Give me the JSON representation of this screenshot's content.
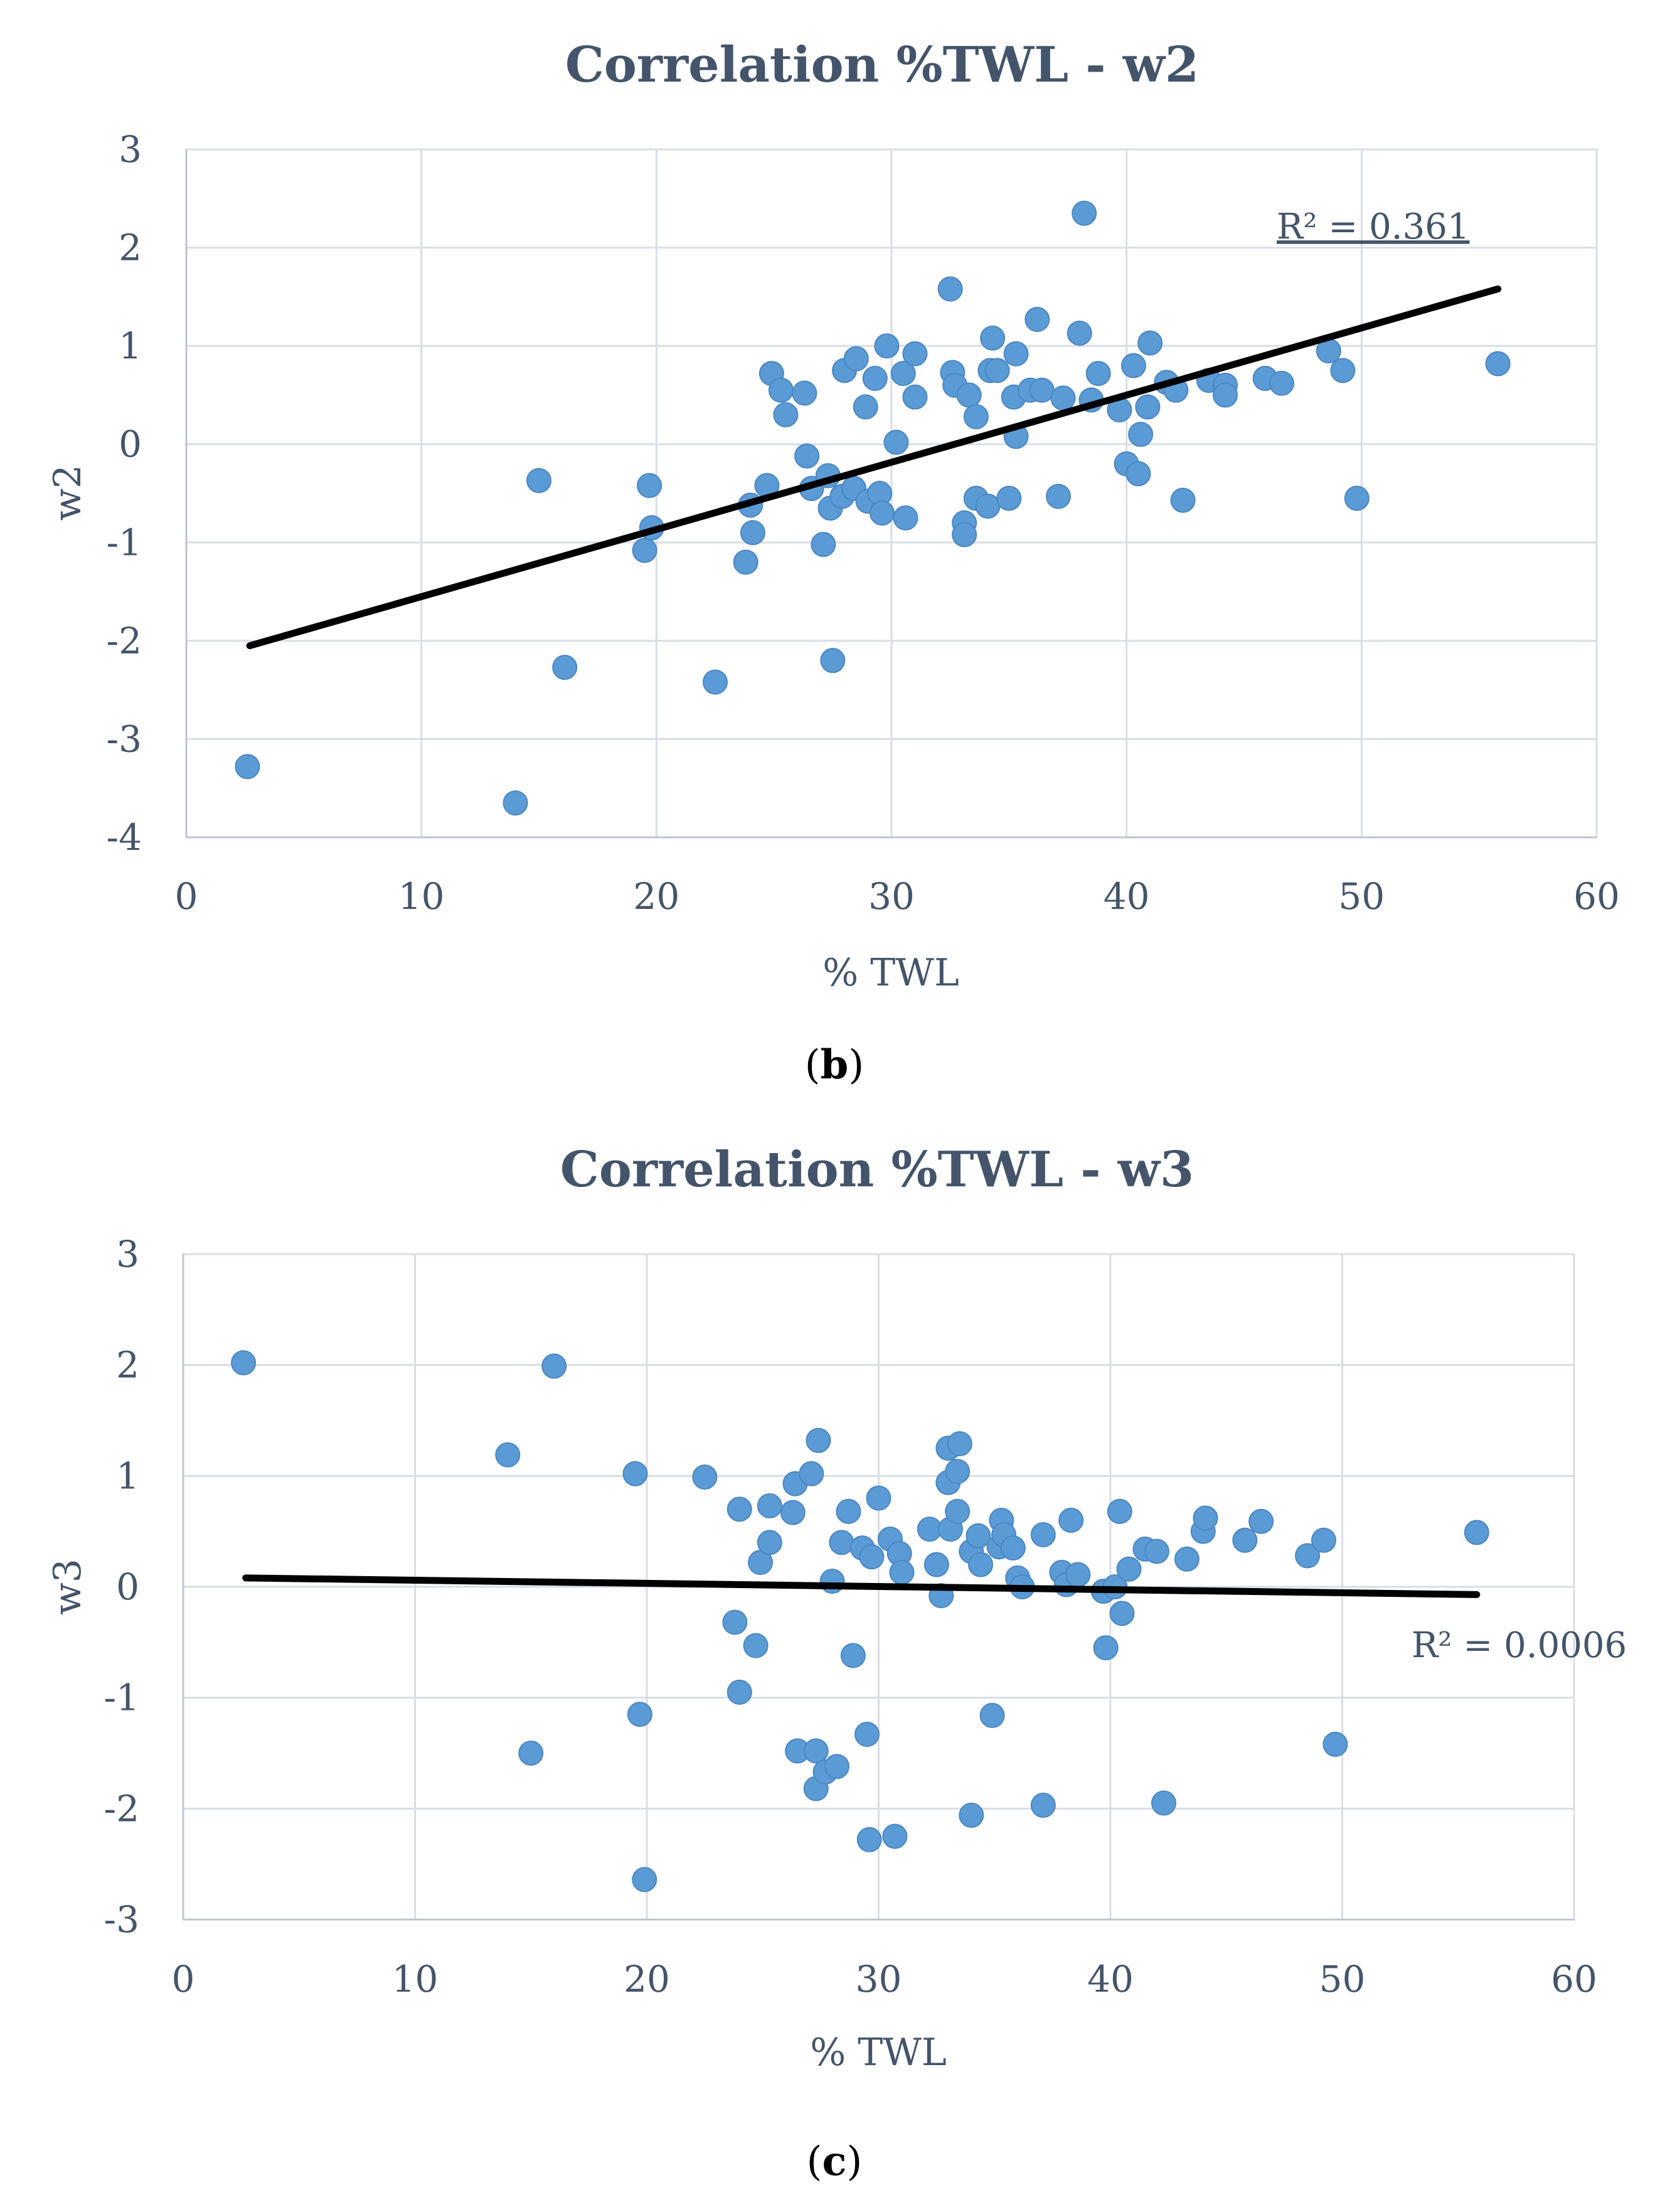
{
  "chart_data": [
    {
      "type": "scatter",
      "panel": "b",
      "caption_letter": "b",
      "title": "Correlation %TWL - w2",
      "xlabel": "% TWL",
      "ylabel": "w2",
      "xlim": [
        0,
        60
      ],
      "ylim": [
        -4,
        3
      ],
      "xticks": [
        "0",
        "10",
        "20",
        "30",
        "40",
        "50",
        "60"
      ],
      "yticks": [
        "3",
        "2",
        "1",
        "0",
        "-1",
        "-2",
        "-3",
        "-4"
      ],
      "r2_label": "R² = 0.361",
      "trendline": {
        "x": [
          2.7,
          55.8
        ],
        "y": [
          -2.05,
          1.58
        ]
      },
      "points": [
        [
          2.6,
          -3.28
        ],
        [
          14.0,
          -3.65
        ],
        [
          15.0,
          -0.37
        ],
        [
          16.1,
          -2.27
        ],
        [
          19.5,
          -1.08
        ],
        [
          19.7,
          -0.42
        ],
        [
          19.8,
          -0.85
        ],
        [
          22.5,
          -2.42
        ],
        [
          23.8,
          -1.2
        ],
        [
          24.0,
          -0.62
        ],
        [
          24.1,
          -0.9
        ],
        [
          24.7,
          -0.42
        ],
        [
          24.9,
          0.72
        ],
        [
          25.3,
          0.55
        ],
        [
          25.5,
          0.3
        ],
        [
          26.3,
          0.52
        ],
        [
          26.4,
          -0.12
        ],
        [
          26.6,
          -0.45
        ],
        [
          27.1,
          -1.02
        ],
        [
          27.3,
          -0.32
        ],
        [
          27.4,
          -0.65
        ],
        [
          27.5,
          -2.2
        ],
        [
          27.9,
          -0.53
        ],
        [
          28.0,
          0.75
        ],
        [
          28.4,
          -0.45
        ],
        [
          28.5,
          0.87
        ],
        [
          28.9,
          0.38
        ],
        [
          29.0,
          -0.58
        ],
        [
          29.3,
          0.67
        ],
        [
          29.5,
          -0.5
        ],
        [
          29.6,
          -0.7
        ],
        [
          29.8,
          1.0
        ],
        [
          30.2,
          0.02
        ],
        [
          30.5,
          0.72
        ],
        [
          30.6,
          -0.75
        ],
        [
          31.0,
          0.48
        ],
        [
          31.0,
          0.92
        ],
        [
          32.5,
          1.58
        ],
        [
          32.6,
          0.73
        ],
        [
          32.7,
          0.6
        ],
        [
          33.1,
          -0.8
        ],
        [
          33.1,
          -0.92
        ],
        [
          33.3,
          0.5
        ],
        [
          33.6,
          0.28
        ],
        [
          33.6,
          -0.55
        ],
        [
          34.1,
          -0.63
        ],
        [
          34.2,
          0.75
        ],
        [
          34.3,
          1.08
        ],
        [
          34.5,
          0.75
        ],
        [
          35.0,
          -0.55
        ],
        [
          35.2,
          0.48
        ],
        [
          35.3,
          0.92
        ],
        [
          35.3,
          0.08
        ],
        [
          35.9,
          0.55
        ],
        [
          36.2,
          1.27
        ],
        [
          36.4,
          0.55
        ],
        [
          37.1,
          -0.53
        ],
        [
          37.3,
          0.47
        ],
        [
          38.0,
          1.13
        ],
        [
          38.2,
          2.35
        ],
        [
          38.5,
          0.45
        ],
        [
          38.8,
          0.72
        ],
        [
          39.7,
          0.35
        ],
        [
          40.0,
          -0.2
        ],
        [
          40.3,
          0.8
        ],
        [
          40.5,
          -0.3
        ],
        [
          40.6,
          0.1
        ],
        [
          40.9,
          0.38
        ],
        [
          41.0,
          1.03
        ],
        [
          41.7,
          0.63
        ],
        [
          42.1,
          0.55
        ],
        [
          42.4,
          -0.57
        ],
        [
          43.5,
          0.65
        ],
        [
          44.2,
          0.6
        ],
        [
          44.2,
          0.5
        ],
        [
          45.9,
          0.67
        ],
        [
          46.6,
          0.62
        ],
        [
          48.6,
          0.95
        ],
        [
          49.2,
          0.75
        ],
        [
          49.8,
          -0.55
        ],
        [
          55.8,
          0.82
        ]
      ]
    },
    {
      "type": "scatter",
      "panel": "c",
      "caption_letter": "c",
      "title": "Correlation %TWL - w3",
      "xlabel": "% TWL",
      "ylabel": "w3",
      "xlim": [
        0,
        60
      ],
      "ylim": [
        -3,
        3
      ],
      "xticks": [
        "0",
        "10",
        "20",
        "30",
        "40",
        "50",
        "60"
      ],
      "yticks": [
        "3",
        "2",
        "1",
        "0",
        "-1",
        "-2",
        "-3"
      ],
      "r2_label": "R² = 0.0006",
      "trendline": {
        "x": [
          2.7,
          55.8
        ],
        "y": [
          0.08,
          -0.07
        ]
      },
      "points": [
        [
          2.6,
          2.02
        ],
        [
          14.0,
          1.19
        ],
        [
          15.0,
          -1.5
        ],
        [
          16.0,
          1.99
        ],
        [
          19.5,
          1.02
        ],
        [
          19.7,
          -1.15
        ],
        [
          19.9,
          -2.64
        ],
        [
          22.5,
          0.99
        ],
        [
          23.8,
          -0.32
        ],
        [
          24.0,
          0.7
        ],
        [
          24.0,
          -0.95
        ],
        [
          24.7,
          -0.53
        ],
        [
          24.9,
          0.22
        ],
        [
          25.3,
          0.73
        ],
        [
          25.3,
          0.4
        ],
        [
          26.3,
          0.67
        ],
        [
          26.4,
          0.93
        ],
        [
          26.5,
          -1.48
        ],
        [
          27.1,
          1.02
        ],
        [
          27.3,
          -1.82
        ],
        [
          27.3,
          -1.48
        ],
        [
          27.4,
          1.32
        ],
        [
          27.7,
          -1.67
        ],
        [
          28.0,
          0.05
        ],
        [
          28.2,
          -1.62
        ],
        [
          28.4,
          0.4
        ],
        [
          28.7,
          0.68
        ],
        [
          28.9,
          -0.62
        ],
        [
          29.3,
          0.35
        ],
        [
          29.5,
          -1.33
        ],
        [
          29.6,
          -2.28
        ],
        [
          29.7,
          0.27
        ],
        [
          30.0,
          0.8
        ],
        [
          30.5,
          0.43
        ],
        [
          30.7,
          -2.25
        ],
        [
          30.9,
          0.3
        ],
        [
          31.0,
          0.13
        ],
        [
          32.2,
          0.52
        ],
        [
          32.5,
          0.2
        ],
        [
          32.7,
          -0.08
        ],
        [
          33.0,
          0.94
        ],
        [
          33.0,
          1.25
        ],
        [
          33.1,
          0.52
        ],
        [
          33.4,
          1.04
        ],
        [
          33.5,
          1.29
        ],
        [
          33.4,
          0.68
        ],
        [
          34.0,
          0.32
        ],
        [
          34.0,
          -2.06
        ],
        [
          34.3,
          0.46
        ],
        [
          34.4,
          0.2
        ],
        [
          34.9,
          -1.16
        ],
        [
          35.2,
          0.36
        ],
        [
          35.3,
          0.6
        ],
        [
          35.4,
          0.47
        ],
        [
          35.8,
          0.35
        ],
        [
          36.0,
          0.08
        ],
        [
          36.2,
          0.0
        ],
        [
          37.1,
          0.47
        ],
        [
          37.1,
          -1.97
        ],
        [
          37.9,
          0.13
        ],
        [
          38.1,
          0.02
        ],
        [
          38.3,
          0.6
        ],
        [
          38.6,
          0.11
        ],
        [
          39.7,
          -0.04
        ],
        [
          39.8,
          -0.55
        ],
        [
          40.2,
          0.0
        ],
        [
          40.4,
          0.68
        ],
        [
          40.5,
          -0.24
        ],
        [
          40.8,
          0.16
        ],
        [
          41.5,
          0.34
        ],
        [
          42.0,
          0.32
        ],
        [
          42.3,
          -1.95
        ],
        [
          43.3,
          0.25
        ],
        [
          44.0,
          0.5
        ],
        [
          44.1,
          0.62
        ],
        [
          45.8,
          0.42
        ],
        [
          46.5,
          0.59
        ],
        [
          48.5,
          0.28
        ],
        [
          49.2,
          0.42
        ],
        [
          49.7,
          -1.42
        ],
        [
          55.8,
          0.49
        ]
      ]
    }
  ]
}
